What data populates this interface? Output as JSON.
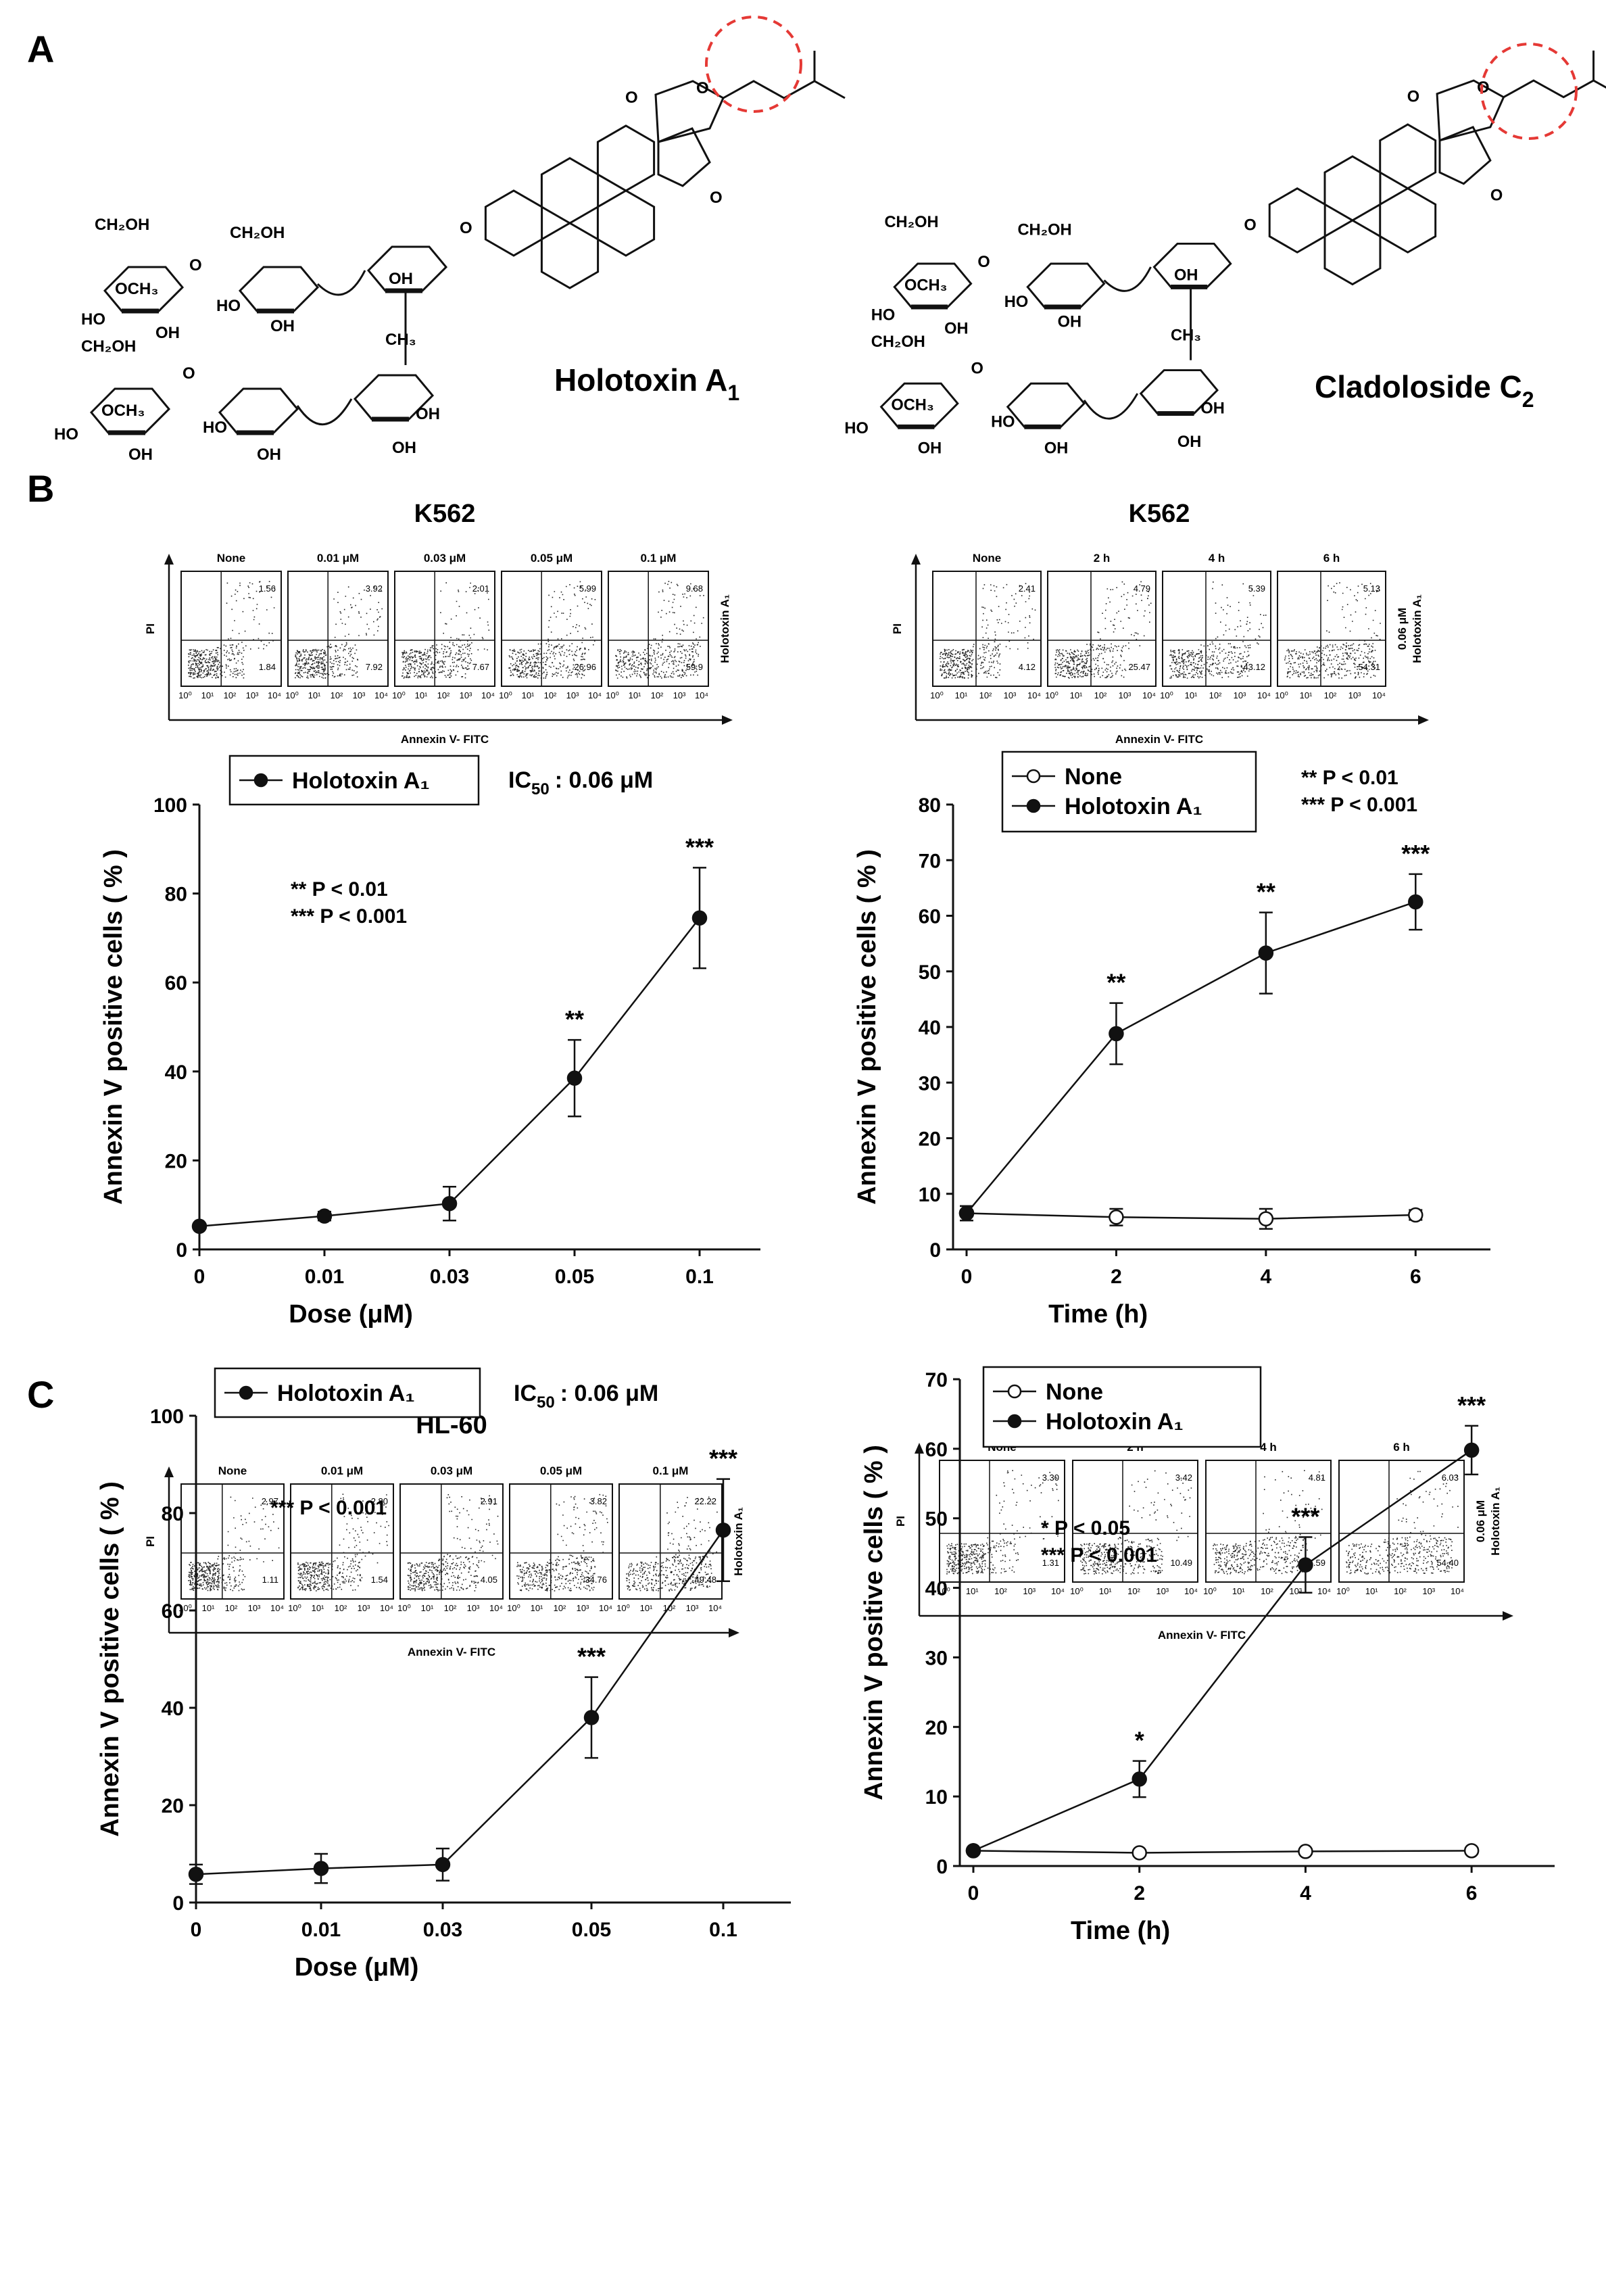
{
  "panels": {
    "A": {
      "label": "A",
      "compounds": [
        {
          "name_main": "Holotoxin A",
          "name_sub": "1"
        },
        {
          "name_main": "Cladoloside C",
          "name_sub": "2"
        }
      ],
      "atoms": {
        "ch2oh": "CH₂OH",
        "och3": "OCH₃",
        "oh": "OH",
        "ho": "HO",
        "ch3": "CH₃",
        "o": "O"
      }
    },
    "B": {
      "label": "B"
    },
    "C": {
      "label": "C"
    }
  },
  "flow": {
    "y_label": "PI",
    "x_label": "Annexin V- FITC",
    "tick_labels": [
      "10⁰",
      "10¹",
      "10²",
      "10³",
      "10⁴"
    ],
    "side_label": "Holotoxin A₁",
    "side_label_time_top": "0.06 μM",
    "side_label_time_bottom": "Holotoxin A₁",
    "panels": [
      {
        "cell_line": "K562",
        "headers": [
          "None",
          "0.01 μM",
          "0.03 μM",
          "0.05 μM",
          "0.1 μM"
        ],
        "upper_right": [
          "1.56",
          "3.92",
          "2.01",
          "5.99",
          "9.68"
        ],
        "lower_right": [
          "1.84",
          "7.92",
          "7.67",
          "26.96",
          "59.9"
        ]
      },
      {
        "cell_line": "K562",
        "headers": [
          "None",
          "2 h",
          "4 h",
          "6 h"
        ],
        "upper_right": [
          "2.41",
          "4.79",
          "5.39",
          "5.13"
        ],
        "lower_right": [
          "4.12",
          "25.47",
          "43.12",
          "54.31"
        ]
      },
      {
        "cell_line": "HL-60",
        "headers": [
          "None",
          "0.01 μM",
          "0.03 μM",
          "0.05 μM",
          "0.1 μM"
        ],
        "upper_right": [
          "2.97",
          "2.80",
          "2.91",
          "3.82",
          "22.22"
        ],
        "lower_right": [
          "1.11",
          "1.54",
          "4.05",
          "34.76",
          "49.48"
        ]
      },
      {
        "cell_line": "HL-60",
        "headers": [
          "None",
          "2 h",
          "4 h",
          "6 h"
        ],
        "upper_right": [
          "3.30",
          "3.42",
          "4.81",
          "6.03"
        ],
        "lower_right": [
          "1.31",
          "10.49",
          "37.59",
          "54.40"
        ]
      }
    ]
  },
  "chart_data": [
    {
      "type": "line",
      "ylabel": "Annexin V positive cells ( % )",
      "xlabel": "Dose (μM)",
      "categories": [
        "0",
        "0.01",
        "0.03",
        "0.05",
        "0.1"
      ],
      "ylim": [
        0,
        100
      ],
      "yticks": [
        "0",
        "20",
        "40",
        "60",
        "80",
        "100"
      ],
      "series": [
        {
          "name": "Holotoxin A₁",
          "marker": "filled",
          "values": [
            5.2,
            7.5,
            10.3,
            38.5,
            74.5
          ],
          "errors": [
            0.6,
            1.0,
            3.8,
            8.6,
            11.3
          ],
          "sig": [
            "",
            "",
            "",
            "**",
            "***"
          ]
        }
      ],
      "ic50": {
        "label": "IC",
        "sub": "50",
        "value": ": 0.06 μM"
      },
      "stats": [
        "** P < 0.01",
        "*** P < 0.001"
      ]
    },
    {
      "type": "line",
      "ylabel": "Annexin V positive cells ( % )",
      "xlabel": "Time (h)",
      "x": [
        0,
        2,
        4,
        6
      ],
      "xticks": [
        "0",
        "2",
        "4",
        "6"
      ],
      "xlim": [
        0,
        7
      ],
      "ylim": [
        0,
        80
      ],
      "yticks": [
        "0",
        "10",
        "20",
        "30",
        "40",
        "50",
        "60",
        "70",
        "80"
      ],
      "series": [
        {
          "name": "None",
          "marker": "open",
          "values": [
            6.5,
            5.8,
            5.5,
            6.2
          ],
          "errors": [
            1.3,
            1.5,
            1.8,
            0.9
          ],
          "sig": [
            "",
            "",
            "",
            ""
          ]
        },
        {
          "name": "Holotoxin A₁",
          "marker": "filled",
          "values": [
            6.5,
            38.8,
            53.3,
            62.5
          ],
          "errors": [
            1.3,
            5.5,
            7.3,
            5.0
          ],
          "sig": [
            "",
            "**",
            "**",
            "***"
          ]
        }
      ],
      "stats": [
        "** P < 0.01",
        "*** P < 0.001"
      ]
    },
    {
      "type": "line",
      "ylabel": "Annexin V positive cells ( % )",
      "xlabel": "Dose (μM)",
      "categories": [
        "0",
        "0.01",
        "0.03",
        "0.05",
        "0.1"
      ],
      "ylim": [
        0,
        100
      ],
      "yticks": [
        "0",
        "20",
        "40",
        "60",
        "80",
        "100"
      ],
      "series": [
        {
          "name": "Holotoxin A₁",
          "marker": "filled",
          "values": [
            5.8,
            7.0,
            7.8,
            38.0,
            76.5
          ],
          "errors": [
            2.0,
            3.0,
            3.3,
            8.3,
            10.5
          ],
          "sig": [
            "",
            "",
            "",
            "***",
            "***"
          ]
        }
      ],
      "ic50": {
        "label": "IC",
        "sub": "50",
        "value": ": 0.06 μM"
      },
      "stats": [
        "*** P < 0.001"
      ]
    },
    {
      "type": "line",
      "ylabel": "Annexin V positive cells ( % )",
      "xlabel": "Time (h)",
      "x": [
        0,
        2,
        4,
        6
      ],
      "xticks": [
        "0",
        "2",
        "4",
        "6"
      ],
      "xlim": [
        0,
        7
      ],
      "ylim": [
        0,
        70
      ],
      "yticks": [
        "0",
        "10",
        "20",
        "30",
        "40",
        "50",
        "60",
        "70"
      ],
      "series": [
        {
          "name": "None",
          "marker": "open",
          "values": [
            2.2,
            1.9,
            2.1,
            2.2
          ],
          "errors": [
            0.4,
            0.4,
            0.4,
            0.4
          ],
          "sig": [
            "",
            "",
            "",
            ""
          ]
        },
        {
          "name": "Holotoxin A₁",
          "marker": "filled",
          "values": [
            2.2,
            12.5,
            43.3,
            59.8
          ],
          "errors": [
            0.4,
            2.6,
            4.0,
            3.5
          ],
          "sig": [
            "",
            "*",
            "***",
            "***"
          ]
        }
      ],
      "stats": [
        "* P < 0.05",
        "*** P < 0.001"
      ]
    }
  ]
}
